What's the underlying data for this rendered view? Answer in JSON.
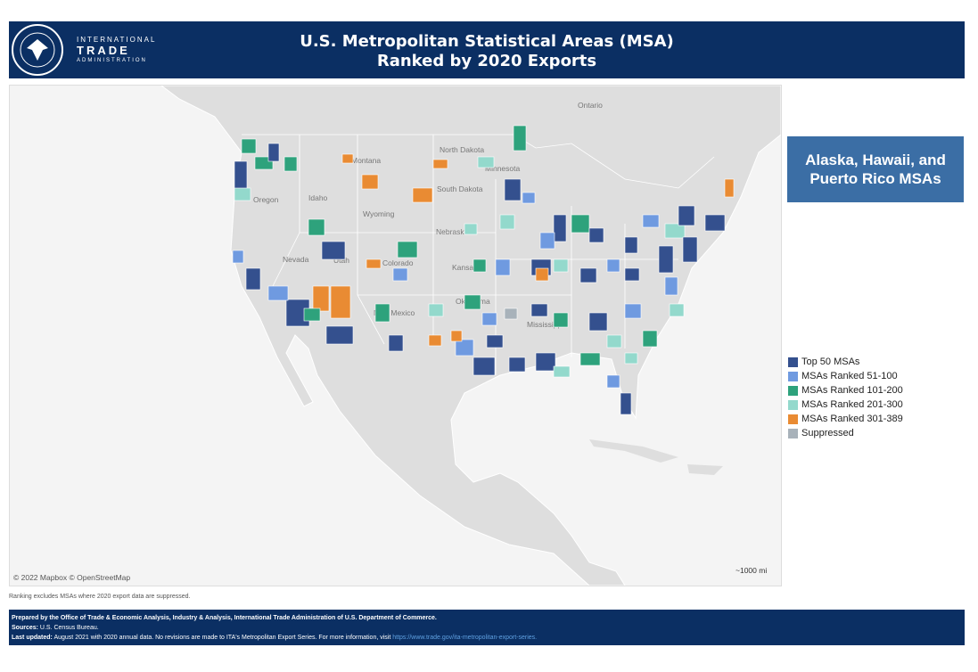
{
  "header": {
    "title_line1": "U.S. Metropolitan Statistical Areas (MSA)",
    "title_line2": "Ranked by 2020 Exports",
    "logo": {
      "line1": "INTERNATIONAL",
      "line2": "TRADE",
      "line3": "ADMINISTRATION"
    }
  },
  "map": {
    "labels": [
      "Ontario",
      "North Dakota",
      "South Dakota",
      "Montana",
      "Wyoming",
      "Nebraska",
      "Kansas",
      "Nevada",
      "Utah",
      "Colorado",
      "Oregon",
      "Idaho",
      "New Mexico",
      "Oklahoma",
      "Mississippi",
      "Minnesota"
    ],
    "attribution": "© 2022 Mapbox © OpenStreetMap",
    "scale": "~1000 mi"
  },
  "territories_button": "Alaska, Hawaii, and Puerto Rico MSAs",
  "legend": [
    {
      "label": "Top 50 MSAs",
      "color": "#34508e"
    },
    {
      "label": "MSAs Ranked 51-100",
      "color": "#6f9ae0"
    },
    {
      "label": "MSAs Ranked 101-200",
      "color": "#2ea27c"
    },
    {
      "label": "MSAs Ranked 201-300",
      "color": "#93d9cc"
    },
    {
      "label": "MSAs Ranked 301-389",
      "color": "#e98b33"
    },
    {
      "label": "Suppressed",
      "color": "#a8b2ba"
    }
  ],
  "note": "Ranking excludes MSAs where 2020 export data are suppressed.",
  "footer": {
    "prepared": "Prepared by the Office of Trade & Economic Analysis, Industry & Analysis, International Trade Administration of U.S. Department of Commerce.",
    "sources_label": "Sources:",
    "sources": "U.S. Census Bureau.",
    "updated_label": "Last updated:",
    "updated": "August 2021 with 2020 annual data. No revisions are made to ITA's Metropolitan Export Series. For more information, visit",
    "link": "https://www.trade.gov/ita-metropolitan-export-series."
  }
}
